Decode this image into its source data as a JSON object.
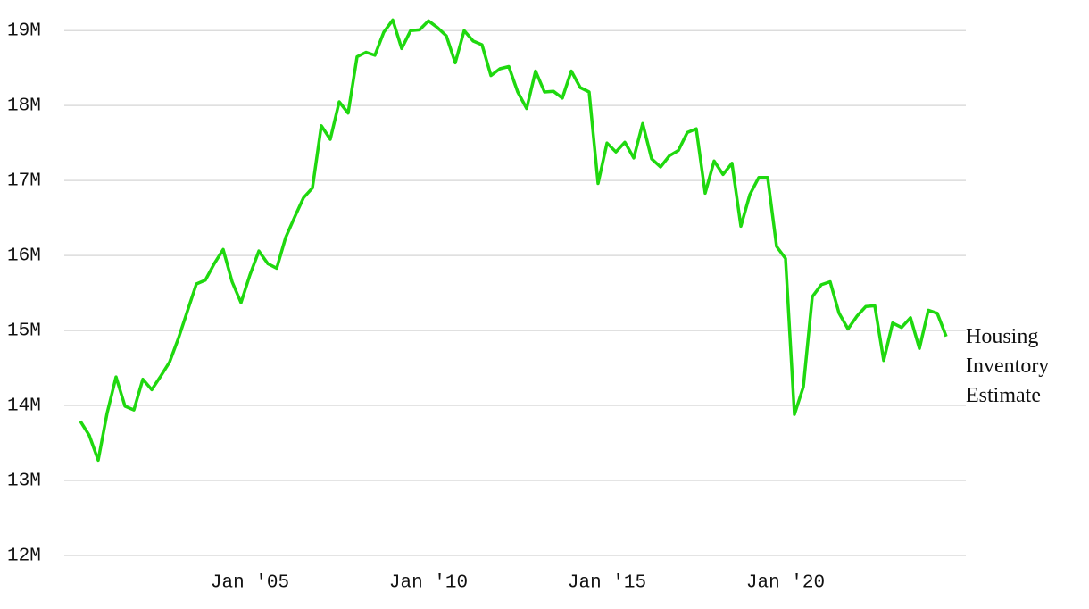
{
  "chart_data": {
    "type": "line",
    "x": [
      "2000-04",
      "2000-07",
      "2000-10",
      "2001-01",
      "2001-04",
      "2001-07",
      "2001-10",
      "2002-01",
      "2002-04",
      "2002-07",
      "2002-10",
      "2003-01",
      "2003-04",
      "2003-07",
      "2003-10",
      "2004-01",
      "2004-04",
      "2004-07",
      "2004-10",
      "2005-01",
      "2005-04",
      "2005-07",
      "2005-10",
      "2006-01",
      "2006-04",
      "2006-07",
      "2006-10",
      "2007-01",
      "2007-04",
      "2007-07",
      "2007-10",
      "2008-01",
      "2008-04",
      "2008-07",
      "2008-10",
      "2009-01",
      "2009-04",
      "2009-07",
      "2009-10",
      "2010-01",
      "2010-04",
      "2010-07",
      "2010-10",
      "2011-01",
      "2011-04",
      "2011-07",
      "2011-10",
      "2012-01",
      "2012-04",
      "2012-07",
      "2012-10",
      "2013-01",
      "2013-04",
      "2013-07",
      "2013-10",
      "2014-01",
      "2014-04",
      "2014-07",
      "2014-10",
      "2015-01",
      "2015-04",
      "2015-07",
      "2015-10",
      "2016-01",
      "2016-04",
      "2016-07",
      "2016-10",
      "2017-01",
      "2017-04",
      "2017-07",
      "2017-10",
      "2018-01",
      "2018-04",
      "2018-07",
      "2018-10",
      "2019-01",
      "2019-04",
      "2019-07",
      "2019-10",
      "2020-01",
      "2020-04",
      "2020-07",
      "2020-10",
      "2021-01",
      "2021-04",
      "2021-07",
      "2021-10",
      "2022-01",
      "2022-04",
      "2022-07",
      "2022-10",
      "2023-01",
      "2023-04",
      "2023-07",
      "2023-10",
      "2024-01",
      "2024-04",
      "2024-07"
    ],
    "series": [
      {
        "name": "Housing Inventory Estimate",
        "color": "#1fd80f",
        "values": [
          13.79,
          13.6,
          13.27,
          13.9,
          14.38,
          13.99,
          13.94,
          14.35,
          14.21,
          14.39,
          14.58,
          14.9,
          15.26,
          15.62,
          15.67,
          15.89,
          16.08,
          15.65,
          15.37,
          15.74,
          16.06,
          15.89,
          15.83,
          16.24,
          16.51,
          16.77,
          16.9,
          17.73,
          17.55,
          18.05,
          17.9,
          18.65,
          18.71,
          18.67,
          18.98,
          19.14,
          18.76,
          19.0,
          19.01,
          19.13,
          19.04,
          18.93,
          18.57,
          19.0,
          18.86,
          18.81,
          18.4,
          18.49,
          18.52,
          18.18,
          17.96,
          18.46,
          18.18,
          18.19,
          18.1,
          18.46,
          18.24,
          18.18,
          16.96,
          17.5,
          17.38,
          17.51,
          17.3,
          17.76,
          17.29,
          17.18,
          17.33,
          17.4,
          17.64,
          17.69,
          16.83,
          17.26,
          17.08,
          17.23,
          16.39,
          16.81,
          17.04,
          17.04,
          16.12,
          15.96,
          13.88,
          14.25,
          15.45,
          15.61,
          15.65,
          15.23,
          15.02,
          15.19,
          15.32,
          15.33,
          14.6,
          15.1,
          15.04,
          15.17,
          14.76,
          15.27,
          15.23,
          14.92
        ]
      }
    ],
    "xlim": [
      "1999-10",
      "2024-10"
    ],
    "xticks": [
      {
        "value": "2005-01",
        "label": "Jan '05"
      },
      {
        "value": "2010-01",
        "label": "Jan '10"
      },
      {
        "value": "2015-01",
        "label": "Jan '15"
      },
      {
        "value": "2020-01",
        "label": "Jan '20"
      }
    ],
    "ylim": [
      12,
      19.3
    ],
    "yticks": [
      {
        "value": 12,
        "label": "12M"
      },
      {
        "value": 13,
        "label": "13M"
      },
      {
        "value": 14,
        "label": "14M"
      },
      {
        "value": 15,
        "label": "15M"
      },
      {
        "value": 16,
        "label": "16M"
      },
      {
        "value": 17,
        "label": "17M"
      },
      {
        "value": 18,
        "label": "18M"
      },
      {
        "value": 19,
        "label": "19M"
      }
    ],
    "grid": true
  }
}
